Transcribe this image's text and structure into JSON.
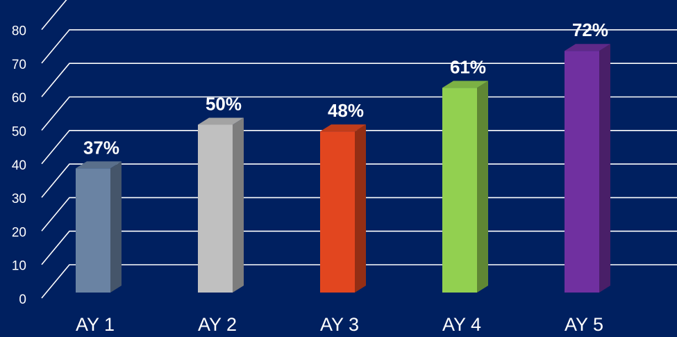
{
  "chart_data": {
    "type": "bar",
    "categories": [
      "AY 1",
      "AY 2",
      "AY 3",
      "AY 4",
      "AY 5"
    ],
    "values": [
      37,
      50,
      48,
      61,
      72
    ],
    "data_labels": [
      "37%",
      "50%",
      "48%",
      "61%",
      "72%"
    ],
    "colors": [
      "#6a83a3",
      "#c0c0c0",
      "#e2461f",
      "#92d050",
      "#7030a0"
    ],
    "yticks": [
      "0",
      "10",
      "20",
      "30",
      "40",
      "50",
      "60",
      "70",
      "80"
    ],
    "ylim": [
      0,
      90
    ],
    "grid": true,
    "style": "3d-column",
    "background": "#002060"
  }
}
